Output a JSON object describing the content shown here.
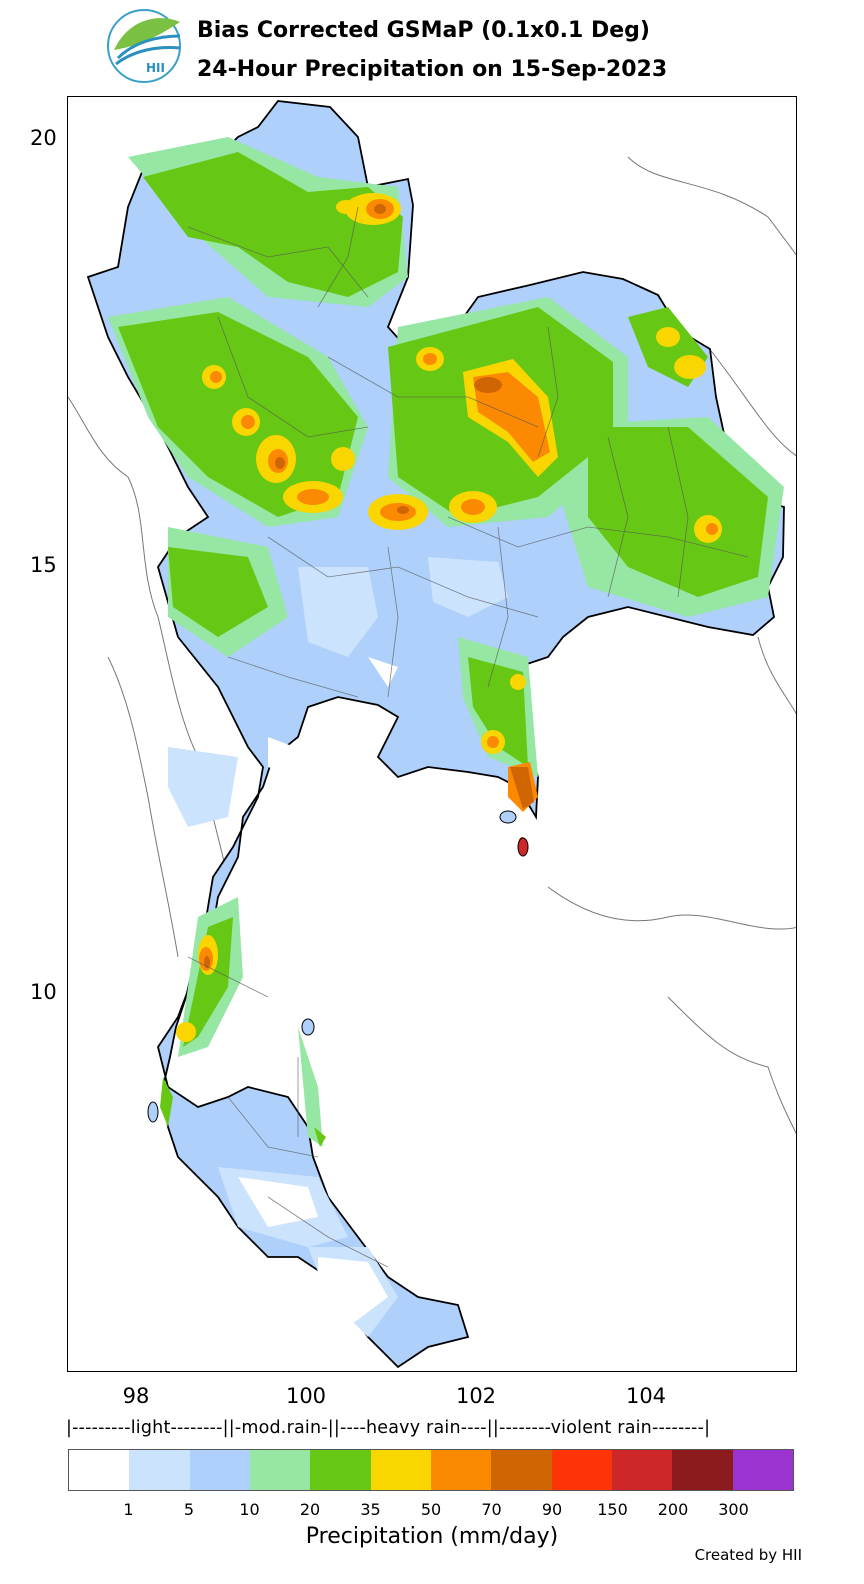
{
  "header": {
    "title": "Bias Corrected GSMaP (0.1x0.1 Deg)",
    "subtitle": "24-Hour Precipitation on 15-Sep-2023",
    "logo_text": "HII"
  },
  "map": {
    "lat_ticks": [
      "20",
      "15",
      "10"
    ],
    "lon_ticks": [
      "98",
      "100",
      "102",
      "104"
    ],
    "land_fill": "#aed0fb",
    "heavy_color": "#66c814"
  },
  "legend": {
    "categories": "|---------light--------||-mod.rain-||----heavy rain----||--------violent rain--------|",
    "bins": [
      {
        "color": "#ffffff"
      },
      {
        "color": "#cce3fd"
      },
      {
        "color": "#aed0fb"
      },
      {
        "color": "#96e6a4"
      },
      {
        "color": "#66c814"
      },
      {
        "color": "#fad600"
      },
      {
        "color": "#fb8a02"
      },
      {
        "color": "#cf6503"
      },
      {
        "color": "#fc3407"
      },
      {
        "color": "#cd2827"
      },
      {
        "color": "#8b1b1c"
      },
      {
        "color": "#9a33cf"
      }
    ],
    "ticks": [
      "1",
      "5",
      "10",
      "20",
      "35",
      "50",
      "70",
      "90",
      "150",
      "200",
      "300"
    ],
    "units": "Precipitation (mm/day)"
  },
  "footer": {
    "credit": "Created by HII"
  }
}
